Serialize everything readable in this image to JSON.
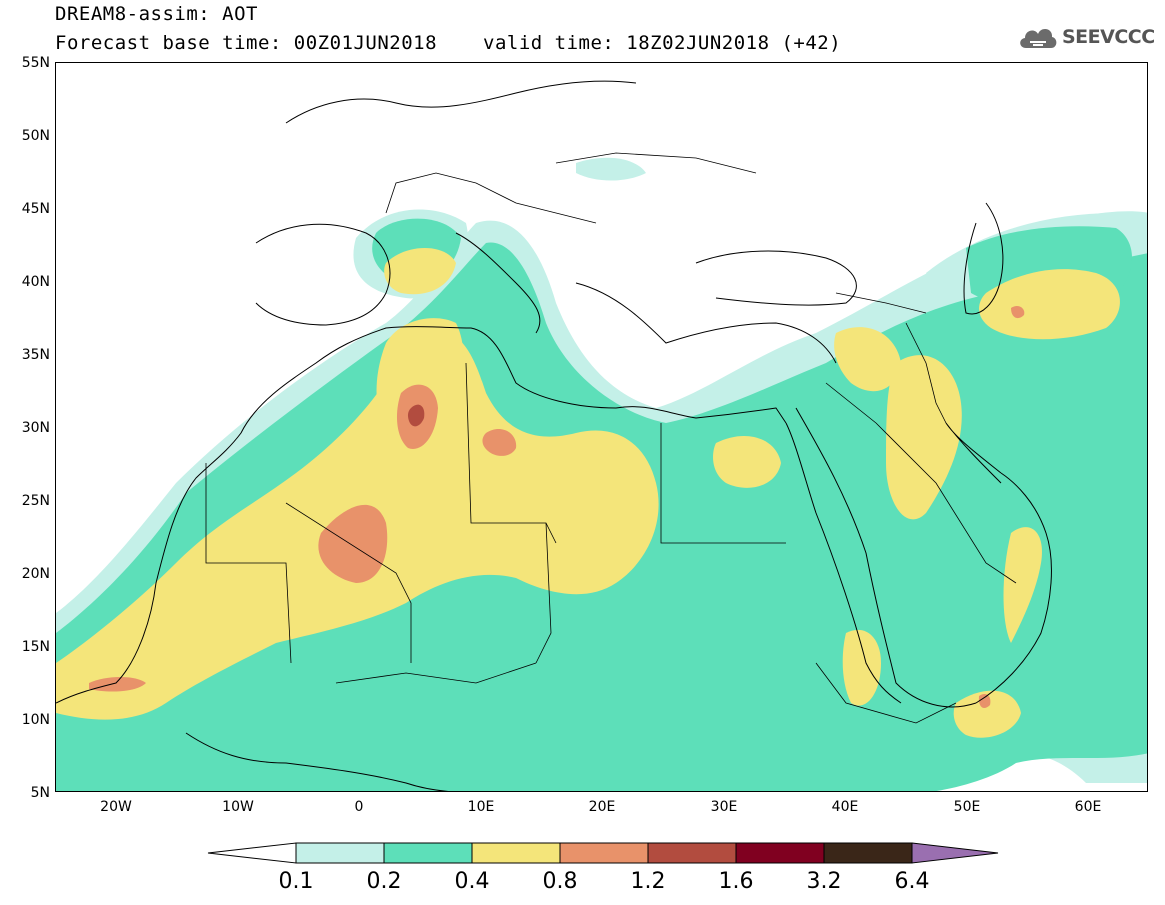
{
  "header": {
    "title": "DREAM8-assim: AOT",
    "base_time": "Forecast base time: 00Z01JUN2018",
    "valid_time": "valid time: 18Z02JUN2018 (+42)"
  },
  "logo": {
    "text": "SEEVCCC",
    "icon": "cloud-icon"
  },
  "map": {
    "lat_labels": [
      "55N",
      "50N",
      "45N",
      "40N",
      "35N",
      "30N",
      "25N",
      "20N",
      "15N",
      "10N",
      "5N"
    ],
    "lon_labels": [
      "20W",
      "10W",
      "0",
      "10E",
      "20E",
      "30E",
      "40E",
      "50E",
      "60E"
    ],
    "extent": {
      "lon_min": -25,
      "lon_max": 65,
      "lat_min": 5,
      "lat_max": 55
    },
    "variable": "AOT"
  },
  "colorbar": {
    "labels": [
      "0.1",
      "0.2",
      "0.4",
      "0.8",
      "1.2",
      "1.6",
      "3.2",
      "6.4"
    ],
    "colors": [
      "#ffffff",
      "#c4f0e8",
      "#5ddfb9",
      "#f4e57a",
      "#e8926a",
      "#b24c3f",
      "#800020",
      "#3a2618",
      "#9a6fb0"
    ]
  }
}
